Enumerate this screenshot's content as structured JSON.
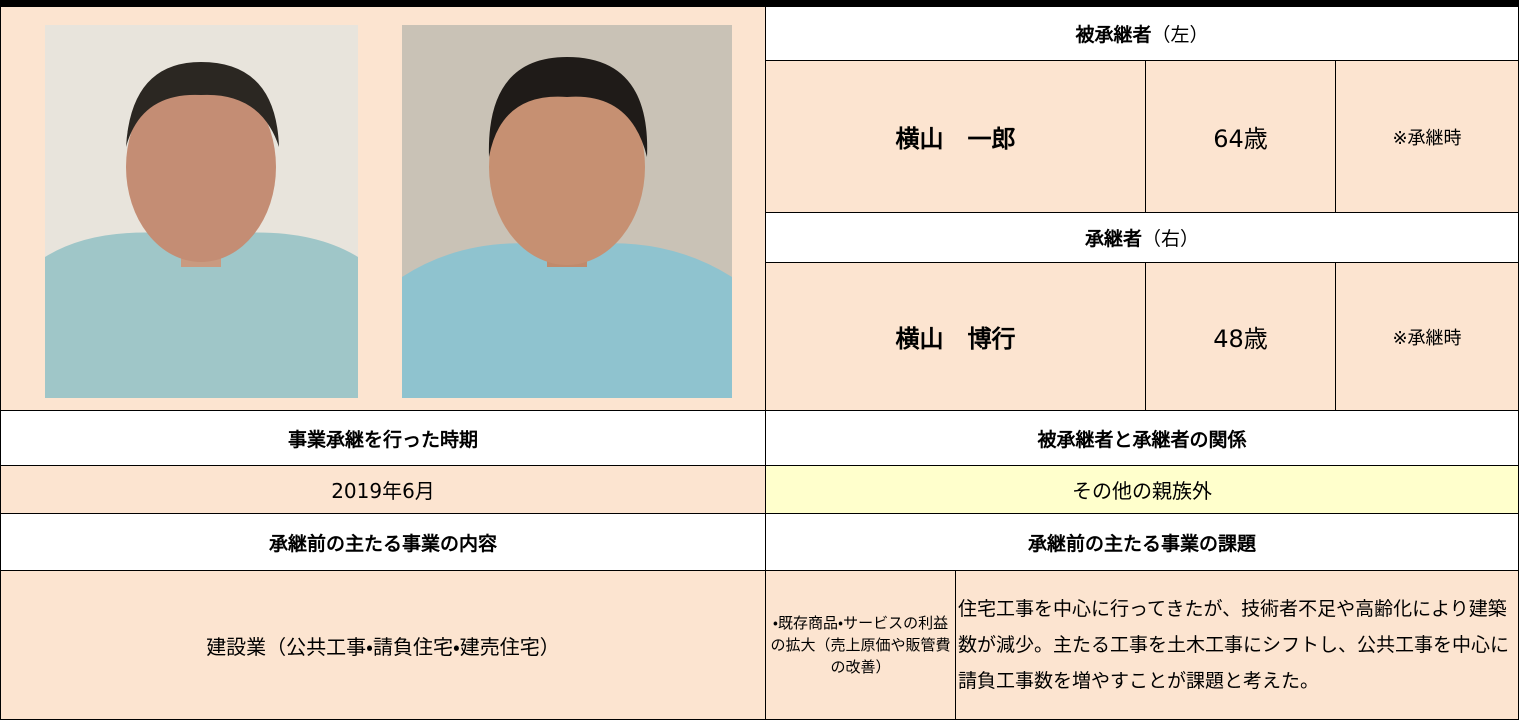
{
  "predecessor": {
    "label": "被承継者",
    "side": "（左）",
    "name": "横山　一郎",
    "age": "64歳",
    "note": "※承継時"
  },
  "successor": {
    "label": "承継者",
    "side": "（右）",
    "name": "横山　博行",
    "age": "48歳",
    "note": "※承継時"
  },
  "timing": {
    "header": "事業承継を行った時期",
    "value": "2019年6月"
  },
  "relationship": {
    "header": "被承継者と承継者の関係",
    "value": "その他の親族外"
  },
  "business": {
    "header": "承継前の主たる事業の内容",
    "value": "建設業（公共工事・請負住宅・建売住宅）"
  },
  "issues": {
    "header": "承継前の主たる事業の課題",
    "category": "・既存商品・サービスの利益の拡大（売上原価や販管費の改善）",
    "detail": "住宅工事を中心に行ってきたが、技術者不足や高齢化により建築数が減少。主たる工事を土木工事にシフトし、公共工事を中心に請負工事数を増やすことが課題と考えた。"
  }
}
